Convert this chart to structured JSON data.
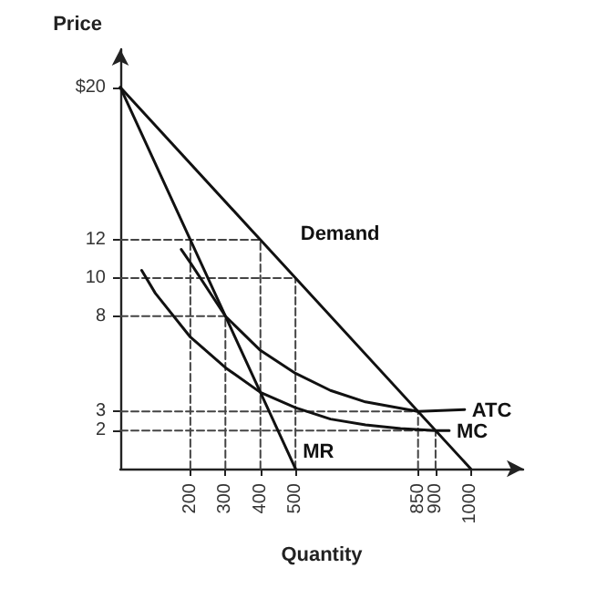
{
  "chart_data": {
    "type": "line",
    "xlabel": "Quantity",
    "ylabel": "Price",
    "xlim": [
      0,
      1150
    ],
    "ylim": [
      0,
      22
    ],
    "xticks": [
      200,
      300,
      400,
      500,
      850,
      900,
      1000
    ],
    "yticks": [
      2,
      3,
      8,
      10,
      12,
      {
        "value": 20,
        "label": "$20"
      }
    ],
    "grid": false,
    "legend": false,
    "marker": "none",
    "series": [
      {
        "name": "Demand",
        "color": "#111111",
        "x": [
          0,
          400,
          1000
        ],
        "values": [
          20,
          12,
          0
        ]
      },
      {
        "name": "MR",
        "color": "#111111",
        "x": [
          0,
          200,
          300,
          400,
          500
        ],
        "values": [
          20,
          12,
          8,
          4,
          0
        ]
      },
      {
        "name": "ATC",
        "color": "#111111",
        "x": [
          174,
          200,
          300,
          400,
          500,
          600,
          700,
          850,
          983
        ],
        "values": [
          11.5,
          10.8,
          8,
          6.2,
          5,
          4.1,
          3.5,
          3,
          3.1
        ]
      },
      {
        "name": "MC",
        "color": "#111111",
        "x": [
          61,
          100,
          200,
          300,
          400,
          500,
          600,
          700,
          800,
          900,
          939
        ],
        "values": [
          10.4,
          9.2,
          6.9,
          5.3,
          4,
          3.2,
          2.6,
          2.3,
          2.1,
          2,
          2
        ]
      },
      {
        "color": "#444444",
        "line_style": "dashed",
        "x": [
          0,
          400
        ],
        "values": [
          12,
          12
        ]
      },
      {
        "color": "#444444",
        "line_style": "dashed",
        "x": [
          0,
          500
        ],
        "values": [
          10,
          10
        ]
      },
      {
        "color": "#444444",
        "line_style": "dashed",
        "x": [
          0,
          300
        ],
        "values": [
          8,
          8
        ]
      },
      {
        "color": "#444444",
        "line_style": "dashed",
        "x": [
          0,
          850
        ],
        "values": [
          3,
          3
        ]
      },
      {
        "color": "#444444",
        "line_style": "dashed",
        "x": [
          0,
          900
        ],
        "values": [
          2,
          2
        ]
      },
      {
        "color": "#444444",
        "line_style": "dashed",
        "x": [
          200,
          200
        ],
        "values": [
          0,
          12
        ]
      },
      {
        "color": "#444444",
        "line_style": "dashed",
        "x": [
          300,
          300
        ],
        "values": [
          0,
          8
        ]
      },
      {
        "color": "#444444",
        "line_style": "dashed",
        "x": [
          400,
          400
        ],
        "values": [
          0,
          12
        ]
      },
      {
        "color": "#444444",
        "line_style": "dashed",
        "x": [
          500,
          500
        ],
        "values": [
          0,
          10
        ]
      },
      {
        "color": "#444444",
        "line_style": "dashed",
        "x": [
          850,
          850
        ],
        "values": [
          0,
          3
        ]
      },
      {
        "color": "#444444",
        "line_style": "dashed",
        "x": [
          900,
          900
        ],
        "values": [
          0,
          2
        ]
      }
    ]
  }
}
